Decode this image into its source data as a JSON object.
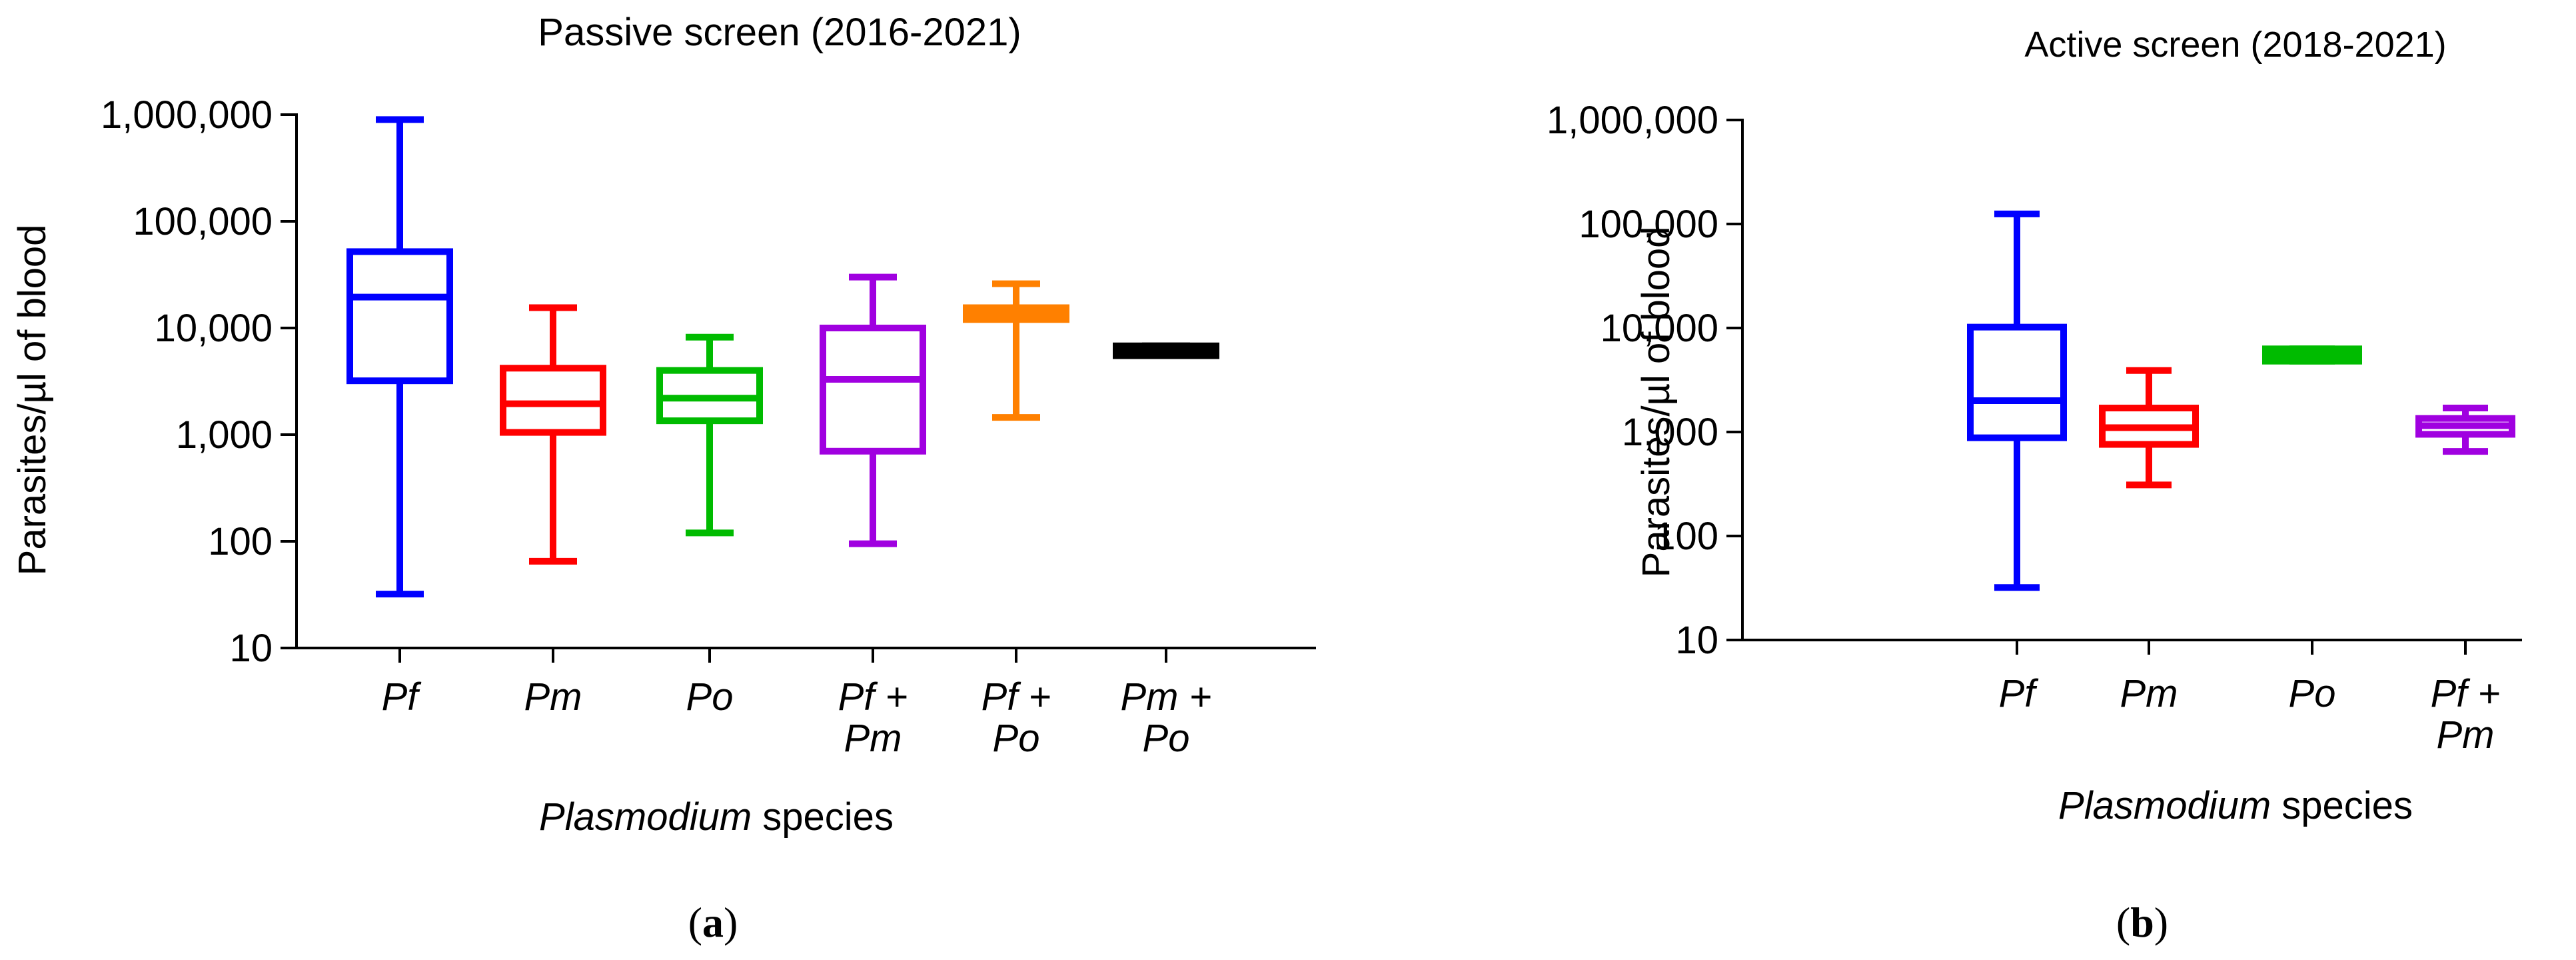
{
  "chart_data": [
    {
      "type": "boxplot",
      "panel": "a",
      "panel_label_open": "(",
      "panel_label_letter": "a",
      "panel_label_close": ")",
      "title": "Passive screen (2016-2021)",
      "ylabel": "Parasites/µl of blood",
      "xlabel_italic": "Plasmodium",
      "xlabel_rest": " species",
      "yscale": "log",
      "ylim": [
        10,
        1000000
      ],
      "yticks": [
        10,
        100,
        1000,
        10000,
        100000,
        1000000
      ],
      "ytick_labels": [
        "10",
        "100",
        "1,000",
        "10,000",
        "100,000",
        "1,000,000"
      ],
      "groups": [
        {
          "lines": [
            "Pf"
          ],
          "color": "#0000ff",
          "min": 32,
          "q1": 3200,
          "median": 19500,
          "q3": 52000,
          "max": 900000
        },
        {
          "lines": [
            "Pm"
          ],
          "color": "#ff0000",
          "min": 65,
          "q1": 1050,
          "median": 1950,
          "q3": 4200,
          "max": 15500
        },
        {
          "lines": [
            "Po"
          ],
          "color": "#00bb00",
          "min": 120,
          "q1": 1350,
          "median": 2200,
          "q3": 4000,
          "max": 8200
        },
        {
          "lines": [
            "Pf +",
            "Pm"
          ],
          "color": "#a000e0",
          "min": 95,
          "q1": 700,
          "median": 3300,
          "q3": 10000,
          "max": 30000
        },
        {
          "lines": [
            "Pf +",
            "Po"
          ],
          "color": "#ff8000",
          "min": 1450,
          "q1": 12000,
          "median": 13500,
          "q3": 15500,
          "max": 26000
        },
        {
          "lines": [
            "Pm +",
            "Po"
          ],
          "color": "#000000",
          "min": 5500,
          "q1": 5500,
          "median": 6000,
          "q3": 6800,
          "max": 6800
        }
      ]
    },
    {
      "type": "boxplot",
      "panel": "b",
      "panel_label_open": "(",
      "panel_label_letter": "b",
      "panel_label_close": ")",
      "title": "Active screen (2018-2021)",
      "ylabel": "Parasites/µl of blood",
      "xlabel_italic": "Plasmodium",
      "xlabel_rest": " species",
      "yscale": "log",
      "ylim": [
        10,
        1000000
      ],
      "yticks": [
        10,
        100,
        1000,
        10000,
        100000,
        1000000
      ],
      "ytick_labels": [
        "10",
        "100",
        "1,000",
        "10,000",
        "100,000",
        "1,000,000"
      ],
      "groups": [
        {
          "lines": [
            "Pf"
          ],
          "color": "#0000ff",
          "min": 32,
          "q1": 880,
          "median": 2000,
          "q3": 10200,
          "max": 125000
        },
        {
          "lines": [
            "Pm"
          ],
          "color": "#ff0000",
          "min": 310,
          "q1": 760,
          "median": 1100,
          "q3": 1700,
          "max": 3900
        },
        {
          "lines": [
            "Po"
          ],
          "color": "#00bb00",
          "min": 4800,
          "q1": 4800,
          "median": 5500,
          "q3": 6300,
          "max": 6300
        },
        {
          "lines": [
            "Pf +",
            "Pm"
          ],
          "color": "#a000e0",
          "min": 650,
          "q1": 950,
          "median": 1150,
          "q3": 1350,
          "max": 1700
        }
      ]
    }
  ]
}
